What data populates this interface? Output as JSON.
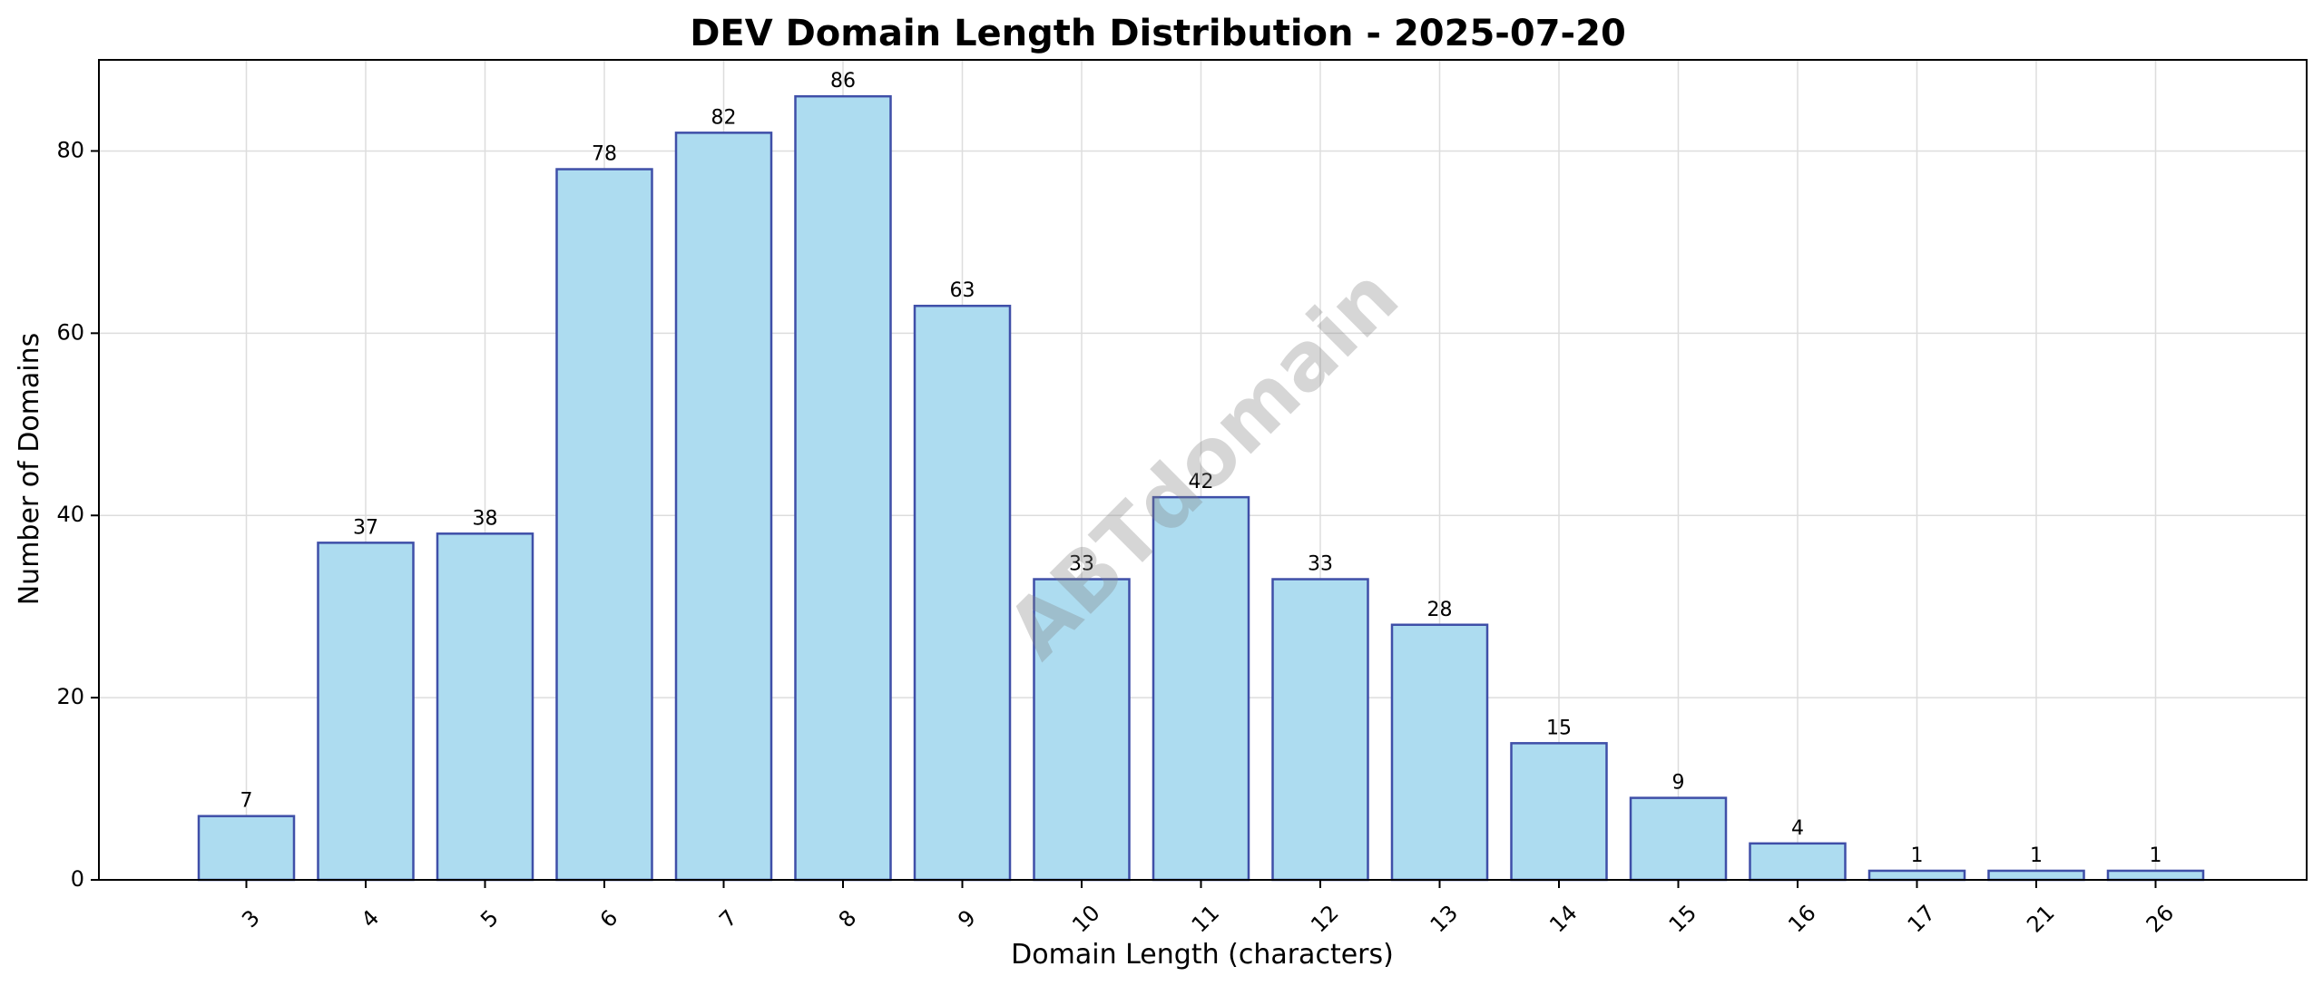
{
  "chart_data": {
    "type": "bar",
    "title": "DEV Domain Length Distribution - 2025-07-20",
    "xlabel": "Domain Length (characters)",
    "ylabel": "Number of Domains",
    "categories": [
      "3",
      "4",
      "5",
      "6",
      "7",
      "8",
      "9",
      "10",
      "11",
      "12",
      "13",
      "14",
      "15",
      "16",
      "17",
      "21",
      "26"
    ],
    "values": [
      7,
      37,
      38,
      78,
      82,
      86,
      63,
      33,
      42,
      33,
      28,
      15,
      9,
      4,
      1,
      1,
      1
    ],
    "ylim": [
      0,
      90
    ],
    "yticks": [
      0,
      20,
      40,
      60,
      80
    ],
    "grid": true,
    "bar_color": "#ADDCF0",
    "bar_edge_color": "#3F4FA8",
    "watermark": "ABTdomain"
  }
}
